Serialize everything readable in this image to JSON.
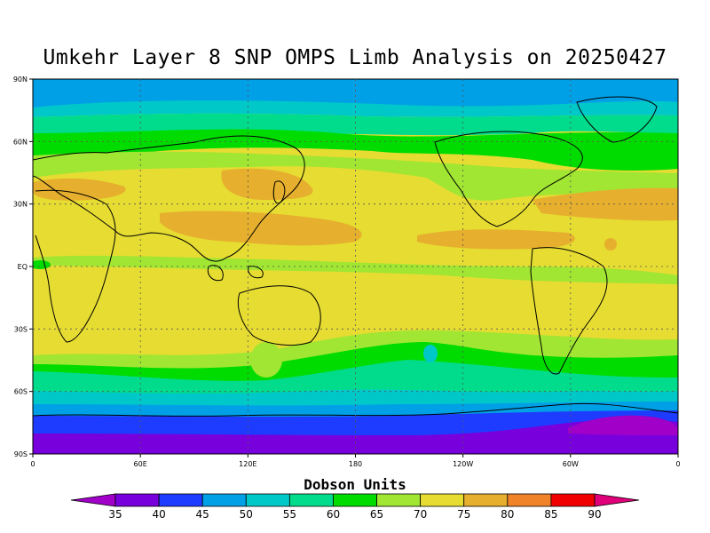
{
  "title": "Umkehr Layer 8 SNP OMPS Limb Analysis on 20250427",
  "y_ticks": [
    "90N",
    "60N",
    "30N",
    "EQ",
    "30S",
    "60S",
    "90S"
  ],
  "x_ticks": [
    "0",
    "60E",
    "120E",
    "180",
    "120W",
    "60W",
    "0"
  ],
  "colorbar": {
    "title": "Dobson Units",
    "levels": [
      "35",
      "40",
      "45",
      "50",
      "55",
      "60",
      "65",
      "70",
      "75",
      "80",
      "85",
      "90"
    ],
    "colors": [
      "#a000c8",
      "#7800dc",
      "#1e3cff",
      "#00a0e6",
      "#00c8c8",
      "#00dc8c",
      "#00dc00",
      "#a0e632",
      "#e6dc32",
      "#e6af2d",
      "#f08228",
      "#f00000",
      "#e0007a"
    ]
  }
}
